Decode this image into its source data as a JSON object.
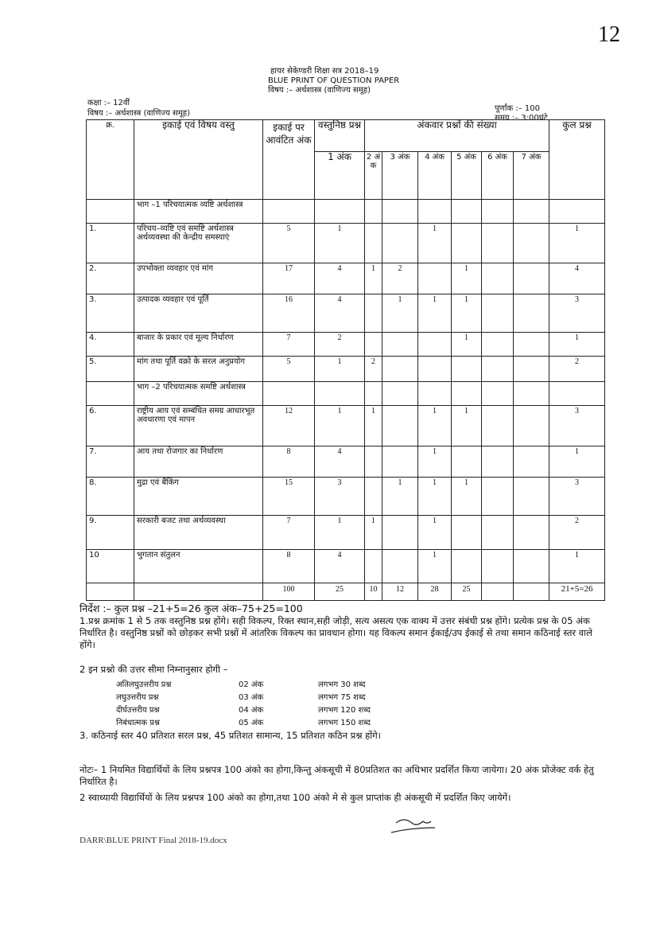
{
  "page_mark": "12",
  "header": {
    "line1": "हायर सेकेण्डरी शिक्षा सत्र 2018–19",
    "line2": "BLUE PRINT OF QUESTION PAPER",
    "line3": "विषय :– अर्थशास्त्र (वाणिज्य समूह)"
  },
  "meta": {
    "class": "कक्षा :– 12वीं",
    "subject": "विषय :– अर्थशास्त्र (वाणिज्य समूह)",
    "max_marks": "पूर्णांक :– 100",
    "time": "समय :– 3:00घंटे"
  },
  "table": {
    "headers": {
      "no": "क्र.",
      "unit": "इकाई एवं विषय वस्तु",
      "marks": "इकाई पर आवंटित अंक",
      "objective": "वस्तुनिष्ठ प्रश्न",
      "objective_sub": "1 अंक",
      "markwise": "अंकवार प्रश्नों की संख्या",
      "mark_cols": [
        "2 अं क",
        "3 अंक",
        "4 अंक",
        "5 अंक",
        "6 अंक",
        "7 अंक"
      ],
      "total": "कुल प्रश्न"
    },
    "part1": "भाग –1 परिचयात्मक व्यष्टि अर्थशास्त्र",
    "part2": "भाग –2 परिचयात्मक समष्टि अर्थशास्त्र",
    "rows": [
      {
        "no": "1.",
        "unit": "परिचय–व्यष्टि एवं समष्टि अर्थशास्त्र अर्थव्यवस्था की केन्द्रीय समस्याएं",
        "marks": "5",
        "obj": "1",
        "m2": "",
        "m3": "",
        "m4": "1",
        "m5": "",
        "m6": "",
        "m7": "",
        "total": "1"
      },
      {
        "no": "2.",
        "unit": "उपभोक्ता व्यवहार एवं मांग",
        "marks": "17",
        "obj": "4",
        "m2": "1",
        "m3": "2",
        "m4": "",
        "m5": "1",
        "m6": "",
        "m7": "",
        "total": "4"
      },
      {
        "no": "3.",
        "unit": "उत्पादक व्यवहार एवं पूर्ति",
        "marks": "16",
        "obj": "4",
        "m2": "",
        "m3": "1",
        "m4": "1",
        "m5": "1",
        "m6": "",
        "m7": "",
        "total": "3"
      },
      {
        "no": "4.",
        "unit": "बाजार के प्रकार एवं मूल्य निर्धारण",
        "marks": "7",
        "obj": "2",
        "m2": "",
        "m3": "",
        "m4": "",
        "m5": "1",
        "m6": "",
        "m7": "",
        "total": "1"
      },
      {
        "no": "5.",
        "unit": "मांग तथा पूर्ति वक्रो के सरल अनुप्रयोग",
        "marks": "5",
        "obj": "1",
        "m2": "2",
        "m3": "",
        "m4": "",
        "m5": "",
        "m6": "",
        "m7": "",
        "total": "2"
      },
      {
        "no": "6.",
        "unit": "राष्ट्रीय आय एवं सम्बंधित समग्र आधारभूत अवधारणा एवं मापन",
        "marks": "12",
        "obj": "1",
        "m2": "1",
        "m3": "",
        "m4": "1",
        "m5": "1",
        "m6": "",
        "m7": "",
        "total": "3"
      },
      {
        "no": "7.",
        "unit": "आय तथा रोजगार का निर्धारण",
        "marks": "8",
        "obj": "4",
        "m2": "",
        "m3": "",
        "m4": "1",
        "m5": "",
        "m6": "",
        "m7": "",
        "total": "1"
      },
      {
        "no": "8.",
        "unit": "मुद्रा एवं बैंकिंग",
        "marks": "15",
        "obj": "3",
        "m2": "",
        "m3": "1",
        "m4": "1",
        "m5": "1",
        "m6": "",
        "m7": "",
        "total": "3"
      },
      {
        "no": "9.",
        "unit": "सरकारी बजट तथा अर्थव्यवस्था",
        "marks": "7",
        "obj": "1",
        "m2": "1",
        "m3": "",
        "m4": "1",
        "m5": "",
        "m6": "",
        "m7": "",
        "total": "2"
      },
      {
        "no": "10",
        "unit": "भुगतान संतुलन",
        "marks": "8",
        "obj": "4",
        "m2": "",
        "m3": "",
        "m4": "1",
        "m5": "",
        "m6": "",
        "m7": "",
        "total": "1"
      }
    ],
    "totals": {
      "marks": "100",
      "obj": "25",
      "m2": "10",
      "m3": "12",
      "m4": "28",
      "m5": "25",
      "m6": "",
      "m7": "",
      "total": "21+5=26"
    }
  },
  "instructions": {
    "summary": "निर्देश :– कुल प्रश्न –21+5=26   कुल अंक–75+25=100",
    "point1": "1.प्रश्न क्रमांक 1 से 5 तक वस्तुनिष्ठ प्रश्न होंगे। सही विकल्प, रिक्त स्थान,सही जोड़ी, सत्य असत्य एक वाक्य में उत्तर संबंधी प्रश्न होंगे। प्रत्येक प्रश्न के 05 अंक निर्धारित है। वस्तुनिष्ठ प्रश्नों को छोड़कर सभी प्रश्नों में आंतरिक विकल्प का प्रावधान होगा। यह विकल्प समान ईकाई/उप ईकाई से तथा समान कठिनाई स्तर वाले होंगे।",
    "point2": "2 इन प्रश्नो की उत्तर सीमा निम्नानुसार होगी –",
    "limits": [
      {
        "type": "अतिलघुउत्तरीय प्रश्न",
        "marks": "02 अंक",
        "words": "लगभग 30 शब्द"
      },
      {
        "type": "लघुउत्तरीय प्रश्न",
        "marks": "03 अंक",
        "words": "लगभग 75 शब्द"
      },
      {
        "type": "दीर्घउत्तरीय प्रश्न",
        "marks": "04 अंक",
        "words": "लगभग 120 शब्द"
      },
      {
        "type": "निबंधात्मक प्रश्न",
        "marks": "05 अंक",
        "words": "लगभग 150 शब्द"
      }
    ],
    "point3": "3. कठिनाई स्तर 40 प्रतिशत सरल प्रश्न, 45 प्रतिशत सामान्य, 15 प्रतिशत कठिन प्रश्न होंगे।"
  },
  "notes": {
    "note1": "नोटः– 1 नियमित विद्यार्थियों के लिय प्रश्नपत्र 100 अंको का होगा,किन्तु अंकसूची में 80प्रतिशत का अधिभार प्रदर्शित किया जायेगा। 20 अंक प्रोजेक्ट वर्क हेतु निर्धारित है।",
    "note2": "2 स्वाध्यायी विद्यार्थियों के लिय प्रश्नपत्र 100 अंको का होगा,तथा 100 अंको मे से कुल प्राप्तांक ही अंकसूची में प्रदर्शित किए जायेगें।"
  },
  "footer": "DARR\\BLUE PRINT Final 2018-19.docx"
}
